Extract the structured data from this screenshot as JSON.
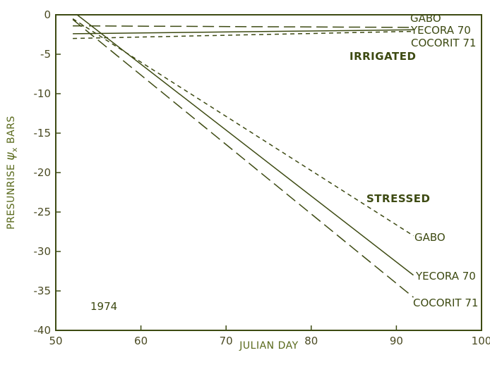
{
  "chart_data": {
    "type": "line",
    "title": "",
    "xlabel": "JULIAN DAY",
    "ylabel": {
      "prefix": "PRESUNRISE ",
      "symbol": "ψ",
      "subscript": "x",
      "suffix": " BARS"
    },
    "xlim": [
      50,
      100
    ],
    "ylim": [
      -40,
      0
    ],
    "x_ticks": [
      50,
      60,
      70,
      80,
      90,
      100
    ],
    "y_ticks": [
      0,
      -5,
      -10,
      -15,
      -20,
      -25,
      -30,
      -35,
      -40
    ],
    "grid": false,
    "color": "#3d4a12",
    "series": [
      {
        "name": "GABO",
        "group": "IRRIGATED",
        "style": "long-dash",
        "x": [
          52,
          92
        ],
        "y": [
          -1.4,
          -1.6
        ]
      },
      {
        "name": "YECORA 70",
        "group": "IRRIGATED",
        "style": "solid",
        "x": [
          52,
          92
        ],
        "y": [
          -2.4,
          -1.9
        ]
      },
      {
        "name": "COCORIT 71",
        "group": "IRRIGATED",
        "style": "short-dash",
        "x": [
          52,
          92
        ],
        "y": [
          -3.0,
          -2.1
        ]
      },
      {
        "name": "GABO",
        "group": "STRESSED",
        "style": "short-dash",
        "x": [
          52,
          92
        ],
        "y": [
          -0.5,
          -28.0
        ]
      },
      {
        "name": "YECORA 70",
        "group": "STRESSED",
        "style": "solid",
        "x": [
          52.5,
          92
        ],
        "y": [
          0,
          -33.0
        ]
      },
      {
        "name": "COCORIT 71",
        "group": "STRESSED",
        "style": "long-dash",
        "x": [
          52,
          92
        ],
        "y": [
          -0.6,
          -35.8
        ]
      }
    ],
    "annotations": {
      "irrigated": "IRRIGATED",
      "stressed": "STRESSED",
      "year": "1974",
      "gabo_irr": "GABO",
      "yecora_irr": "YECORA 70",
      "cocorit_irr": "COCORIT 71",
      "gabo_str": "GABO",
      "yecora_str": "YECORA 70",
      "cocorit_str": "COCORIT 71"
    }
  }
}
